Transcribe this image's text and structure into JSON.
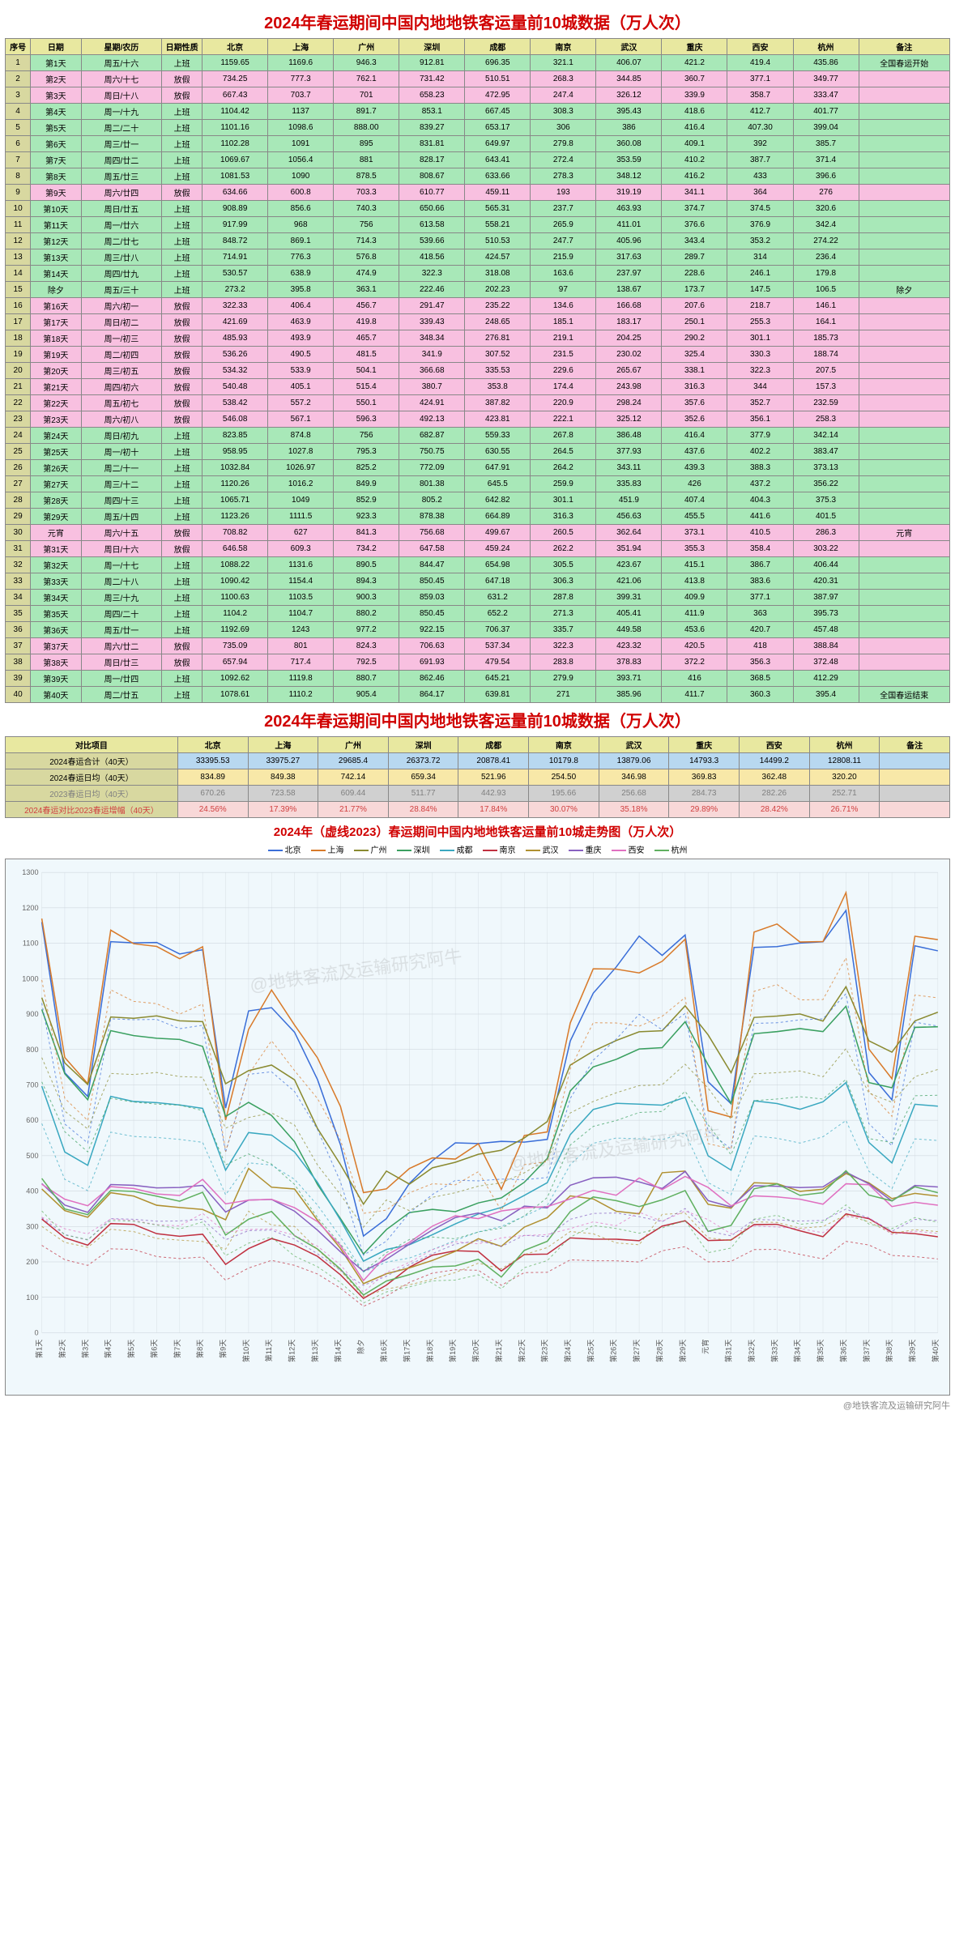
{
  "title_main": "2024年春运期间中国内地地铁客运量前10城数据（万人次）",
  "header": [
    "序号",
    "日期",
    "星期/农历",
    "日期性质",
    "北京",
    "上海",
    "广州",
    "深圳",
    "成都",
    "南京",
    "武汉",
    "重庆",
    "西安",
    "杭州",
    "备注"
  ],
  "cities": [
    "北京",
    "上海",
    "广州",
    "深圳",
    "成都",
    "南京",
    "武汉",
    "重庆",
    "西安",
    "杭州"
  ],
  "rows": [
    {
      "n": 1,
      "d": "第1天",
      "w": "周五/十六",
      "t": "上班",
      "v": [
        "1159.65",
        "1169.6",
        "946.3",
        "912.81",
        "696.35",
        "321.1",
        "406.07",
        "421.2",
        "419.4",
        "435.86"
      ],
      "note": "全国春运开始"
    },
    {
      "n": 2,
      "d": "第2天",
      "w": "周六/十七",
      "t": "放假",
      "v": [
        "734.25",
        "777.3",
        "762.1",
        "731.42",
        "510.51",
        "268.3",
        "344.85",
        "360.7",
        "377.1",
        "349.77"
      ],
      "note": ""
    },
    {
      "n": 3,
      "d": "第3天",
      "w": "周日/十八",
      "t": "放假",
      "v": [
        "667.43",
        "703.7",
        "701",
        "658.23",
        "472.95",
        "247.4",
        "326.12",
        "339.9",
        "358.7",
        "333.47"
      ],
      "note": ""
    },
    {
      "n": 4,
      "d": "第4天",
      "w": "周一/十九",
      "t": "上班",
      "v": [
        "1104.42",
        "1137",
        "891.7",
        "853.1",
        "667.45",
        "308.3",
        "395.43",
        "418.6",
        "412.7",
        "401.77"
      ],
      "note": ""
    },
    {
      "n": 5,
      "d": "第5天",
      "w": "周二/二十",
      "t": "上班",
      "v": [
        "1101.16",
        "1098.6",
        "888.00",
        "839.27",
        "653.17",
        "306",
        "386",
        "416.4",
        "407.30",
        "399.04"
      ],
      "note": ""
    },
    {
      "n": 6,
      "d": "第6天",
      "w": "周三/廿一",
      "t": "上班",
      "v": [
        "1102.28",
        "1091",
        "895",
        "831.81",
        "649.97",
        "279.8",
        "360.08",
        "409.1",
        "392",
        "385.7"
      ],
      "note": ""
    },
    {
      "n": 7,
      "d": "第7天",
      "w": "周四/廿二",
      "t": "上班",
      "v": [
        "1069.67",
        "1056.4",
        "881",
        "828.17",
        "643.41",
        "272.4",
        "353.59",
        "410.2",
        "387.7",
        "371.4"
      ],
      "note": ""
    },
    {
      "n": 8,
      "d": "第8天",
      "w": "周五/廿三",
      "t": "上班",
      "v": [
        "1081.53",
        "1090",
        "878.5",
        "808.67",
        "633.66",
        "278.3",
        "348.12",
        "416.2",
        "433",
        "396.6"
      ],
      "note": ""
    },
    {
      "n": 9,
      "d": "第9天",
      "w": "周六/廿四",
      "t": "放假",
      "v": [
        "634.66",
        "600.8",
        "703.3",
        "610.77",
        "459.11",
        "193",
        "319.19",
        "341.1",
        "364",
        "276"
      ],
      "note": ""
    },
    {
      "n": 10,
      "d": "第10天",
      "w": "周日/廿五",
      "t": "上班",
      "v": [
        "908.89",
        "856.6",
        "740.3",
        "650.66",
        "565.31",
        "237.7",
        "463.93",
        "374.7",
        "374.5",
        "320.6"
      ],
      "note": ""
    },
    {
      "n": 11,
      "d": "第11天",
      "w": "周一/廿六",
      "t": "上班",
      "v": [
        "917.99",
        "968",
        "756",
        "613.58",
        "558.21",
        "265.9",
        "411.01",
        "376.6",
        "376.9",
        "342.4"
      ],
      "note": ""
    },
    {
      "n": 12,
      "d": "第12天",
      "w": "周二/廿七",
      "t": "上班",
      "v": [
        "848.72",
        "869.1",
        "714.3",
        "539.66",
        "510.53",
        "247.7",
        "405.96",
        "343.4",
        "353.2",
        "274.22"
      ],
      "note": ""
    },
    {
      "n": 13,
      "d": "第13天",
      "w": "周三/廿八",
      "t": "上班",
      "v": [
        "714.91",
        "776.3",
        "576.8",
        "418.56",
        "424.57",
        "215.9",
        "317.63",
        "289.7",
        "314",
        "236.4"
      ],
      "note": ""
    },
    {
      "n": 14,
      "d": "第14天",
      "w": "周四/廿九",
      "t": "上班",
      "v": [
        "530.57",
        "638.9",
        "474.9",
        "322.3",
        "318.08",
        "163.6",
        "237.97",
        "228.6",
        "246.1",
        "179.8"
      ],
      "note": ""
    },
    {
      "n": 15,
      "d": "除夕",
      "w": "周五/三十",
      "t": "上班",
      "v": [
        "273.2",
        "395.8",
        "363.1",
        "222.46",
        "202.23",
        "97",
        "138.67",
        "173.7",
        "147.5",
        "106.5"
      ],
      "note": "除夕"
    },
    {
      "n": 16,
      "d": "第16天",
      "w": "周六/初一",
      "t": "放假",
      "v": [
        "322.33",
        "406.4",
        "456.7",
        "291.47",
        "235.22",
        "134.6",
        "166.68",
        "207.6",
        "218.7",
        "146.1"
      ],
      "note": ""
    },
    {
      "n": 17,
      "d": "第17天",
      "w": "周日/初二",
      "t": "放假",
      "v": [
        "421.69",
        "463.9",
        "419.8",
        "339.43",
        "248.65",
        "185.1",
        "183.17",
        "250.1",
        "255.3",
        "164.1"
      ],
      "note": ""
    },
    {
      "n": 18,
      "d": "第18天",
      "w": "周一/初三",
      "t": "放假",
      "v": [
        "485.93",
        "493.9",
        "465.7",
        "348.34",
        "276.81",
        "219.1",
        "204.25",
        "290.2",
        "301.1",
        "185.73"
      ],
      "note": ""
    },
    {
      "n": 19,
      "d": "第19天",
      "w": "周二/初四",
      "t": "放假",
      "v": [
        "536.26",
        "490.5",
        "481.5",
        "341.9",
        "307.52",
        "231.5",
        "230.02",
        "325.4",
        "330.3",
        "188.74"
      ],
      "note": ""
    },
    {
      "n": 20,
      "d": "第20天",
      "w": "周三/初五",
      "t": "放假",
      "v": [
        "534.32",
        "533.9",
        "504.1",
        "366.68",
        "335.53",
        "229.6",
        "265.67",
        "338.1",
        "322.3",
        "207.5"
      ],
      "note": ""
    },
    {
      "n": 21,
      "d": "第21天",
      "w": "周四/初六",
      "t": "放假",
      "v": [
        "540.48",
        "405.1",
        "515.4",
        "380.7",
        "353.8",
        "174.4",
        "243.98",
        "316.3",
        "344",
        "157.3"
      ],
      "note": ""
    },
    {
      "n": 22,
      "d": "第22天",
      "w": "周五/初七",
      "t": "放假",
      "v": [
        "538.42",
        "557.2",
        "550.1",
        "424.91",
        "387.82",
        "220.9",
        "298.24",
        "357.6",
        "352.7",
        "232.59"
      ],
      "note": ""
    },
    {
      "n": 23,
      "d": "第23天",
      "w": "周六/初八",
      "t": "放假",
      "v": [
        "546.08",
        "567.1",
        "596.3",
        "492.13",
        "423.81",
        "222.1",
        "325.12",
        "352.6",
        "356.1",
        "258.3"
      ],
      "note": ""
    },
    {
      "n": 24,
      "d": "第24天",
      "w": "周日/初九",
      "t": "上班",
      "v": [
        "823.85",
        "874.8",
        "756",
        "682.87",
        "559.33",
        "267.8",
        "386.48",
        "416.4",
        "377.9",
        "342.14"
      ],
      "note": ""
    },
    {
      "n": 25,
      "d": "第25天",
      "w": "周一/初十",
      "t": "上班",
      "v": [
        "958.95",
        "1027.8",
        "795.3",
        "750.75",
        "630.55",
        "264.5",
        "377.93",
        "437.6",
        "402.2",
        "383.47"
      ],
      "note": ""
    },
    {
      "n": 26,
      "d": "第26天",
      "w": "周二/十一",
      "t": "上班",
      "v": [
        "1032.84",
        "1026.97",
        "825.2",
        "772.09",
        "647.91",
        "264.2",
        "343.11",
        "439.3",
        "388.3",
        "373.13"
      ],
      "note": ""
    },
    {
      "n": 27,
      "d": "第27天",
      "w": "周三/十二",
      "t": "上班",
      "v": [
        "1120.26",
        "1016.2",
        "849.9",
        "801.38",
        "645.5",
        "259.9",
        "335.83",
        "426",
        "437.2",
        "356.22"
      ],
      "note": ""
    },
    {
      "n": 28,
      "d": "第28天",
      "w": "周四/十三",
      "t": "上班",
      "v": [
        "1065.71",
        "1049",
        "852.9",
        "805.2",
        "642.82",
        "301.1",
        "451.9",
        "407.4",
        "404.3",
        "375.3"
      ],
      "note": ""
    },
    {
      "n": 29,
      "d": "第29天",
      "w": "周五/十四",
      "t": "上班",
      "v": [
        "1123.26",
        "1111.5",
        "923.3",
        "878.38",
        "664.89",
        "316.3",
        "456.63",
        "455.5",
        "441.6",
        "401.5"
      ],
      "note": ""
    },
    {
      "n": 30,
      "d": "元宵",
      "w": "周六/十五",
      "t": "放假",
      "v": [
        "708.82",
        "627",
        "841.3",
        "756.68",
        "499.67",
        "260.5",
        "362.64",
        "373.1",
        "410.5",
        "286.3"
      ],
      "note": "元宵"
    },
    {
      "n": 31,
      "d": "第31天",
      "w": "周日/十六",
      "t": "放假",
      "v": [
        "646.58",
        "609.3",
        "734.2",
        "647.58",
        "459.24",
        "262.2",
        "351.94",
        "355.3",
        "358.4",
        "303.22"
      ],
      "note": ""
    },
    {
      "n": 32,
      "d": "第32天",
      "w": "周一/十七",
      "t": "上班",
      "v": [
        "1088.22",
        "1131.6",
        "890.5",
        "844.47",
        "654.98",
        "305.5",
        "423.67",
        "415.1",
        "386.7",
        "406.44"
      ],
      "note": ""
    },
    {
      "n": 33,
      "d": "第33天",
      "w": "周二/十八",
      "t": "上班",
      "v": [
        "1090.42",
        "1154.4",
        "894.3",
        "850.45",
        "647.18",
        "306.3",
        "421.06",
        "413.8",
        "383.6",
        "420.31"
      ],
      "note": ""
    },
    {
      "n": 34,
      "d": "第34天",
      "w": "周三/十九",
      "t": "上班",
      "v": [
        "1100.63",
        "1103.5",
        "900.3",
        "859.03",
        "631.2",
        "287.8",
        "399.31",
        "409.9",
        "377.1",
        "387.97"
      ],
      "note": ""
    },
    {
      "n": 35,
      "d": "第35天",
      "w": "周四/二十",
      "t": "上班",
      "v": [
        "1104.2",
        "1104.7",
        "880.2",
        "850.45",
        "652.2",
        "271.3",
        "405.41",
        "411.9",
        "363",
        "395.73"
      ],
      "note": ""
    },
    {
      "n": 36,
      "d": "第36天",
      "w": "周五/廿一",
      "t": "上班",
      "v": [
        "1192.69",
        "1243",
        "977.2",
        "922.15",
        "706.37",
        "335.7",
        "449.58",
        "453.6",
        "420.7",
        "457.48"
      ],
      "note": ""
    },
    {
      "n": 37,
      "d": "第37天",
      "w": "周六/廿二",
      "t": "放假",
      "v": [
        "735.09",
        "801",
        "824.3",
        "706.63",
        "537.34",
        "322.3",
        "423.32",
        "420.5",
        "418",
        "388.84"
      ],
      "note": ""
    },
    {
      "n": 38,
      "d": "第38天",
      "w": "周日/廿三",
      "t": "放假",
      "v": [
        "657.94",
        "717.4",
        "792.5",
        "691.93",
        "479.54",
        "283.8",
        "378.83",
        "372.2",
        "356.3",
        "372.48"
      ],
      "note": ""
    },
    {
      "n": 39,
      "d": "第39天",
      "w": "周一/廿四",
      "t": "上班",
      "v": [
        "1092.62",
        "1119.8",
        "880.7",
        "862.46",
        "645.21",
        "279.9",
        "393.71",
        "416",
        "368.5",
        "412.29"
      ],
      "note": ""
    },
    {
      "n": 40,
      "d": "第40天",
      "w": "周二/廿五",
      "t": "上班",
      "v": [
        "1078.61",
        "1110.2",
        "905.4",
        "864.17",
        "639.81",
        "271",
        "385.96",
        "411.7",
        "360.3",
        "395.4"
      ],
      "note": "全国春运结束"
    }
  ],
  "summary": {
    "label_col": "对比项目",
    "rows": [
      {
        "cls": "r-total",
        "label": "2024春运合计（40天）",
        "v": [
          "33395.53",
          "33975.27",
          "29685.4",
          "26373.72",
          "20878.41",
          "10179.8",
          "13879.06",
          "14793.3",
          "14499.2",
          "12808.11"
        ],
        "note": ""
      },
      {
        "cls": "r-avg",
        "label": "2024春运日均（40天）",
        "v": [
          "834.89",
          "849.38",
          "742.14",
          "659.34",
          "521.96",
          "254.50",
          "346.98",
          "369.83",
          "362.48",
          "320.20"
        ],
        "note": ""
      },
      {
        "cls": "r-2023",
        "label": "2023春运日均（40天）",
        "v": [
          "670.26",
          "723.58",
          "609.44",
          "511.77",
          "442.93",
          "195.66",
          "256.68",
          "284.73",
          "282.26",
          "252.71"
        ],
        "note": ""
      },
      {
        "cls": "r-pct",
        "label": "2024春运对比2023春运增幅（40天）",
        "v": [
          "24.56%",
          "17.39%",
          "21.77%",
          "28.84%",
          "17.84%",
          "30.07%",
          "35.18%",
          "29.89%",
          "28.42%",
          "26.71%"
        ],
        "note": ""
      }
    ]
  },
  "chart": {
    "title": "2024年（虚线2023）春运期间中国内地地铁客运量前10城走势图（万人次）",
    "y_min": 0,
    "y_max": 1300,
    "y_step": 100,
    "colors": {
      "北京": "#3a6ed8",
      "上海": "#d87a2a",
      "广州": "#8a8a30",
      "深圳": "#3aa060",
      "成都": "#3aa8c0",
      "南京": "#c03040",
      "武汉": "#b09030",
      "重庆": "#8860c0",
      "西安": "#e070c0",
      "杭州": "#60b060"
    },
    "bg": "#f0f8fc",
    "grid": "#c8d0d8",
    "font_axis": 9,
    "font_legend": 10
  },
  "credit": "@地铁客流及运输研究阿牛",
  "watermark": "@地铁客流及运输研究阿牛"
}
